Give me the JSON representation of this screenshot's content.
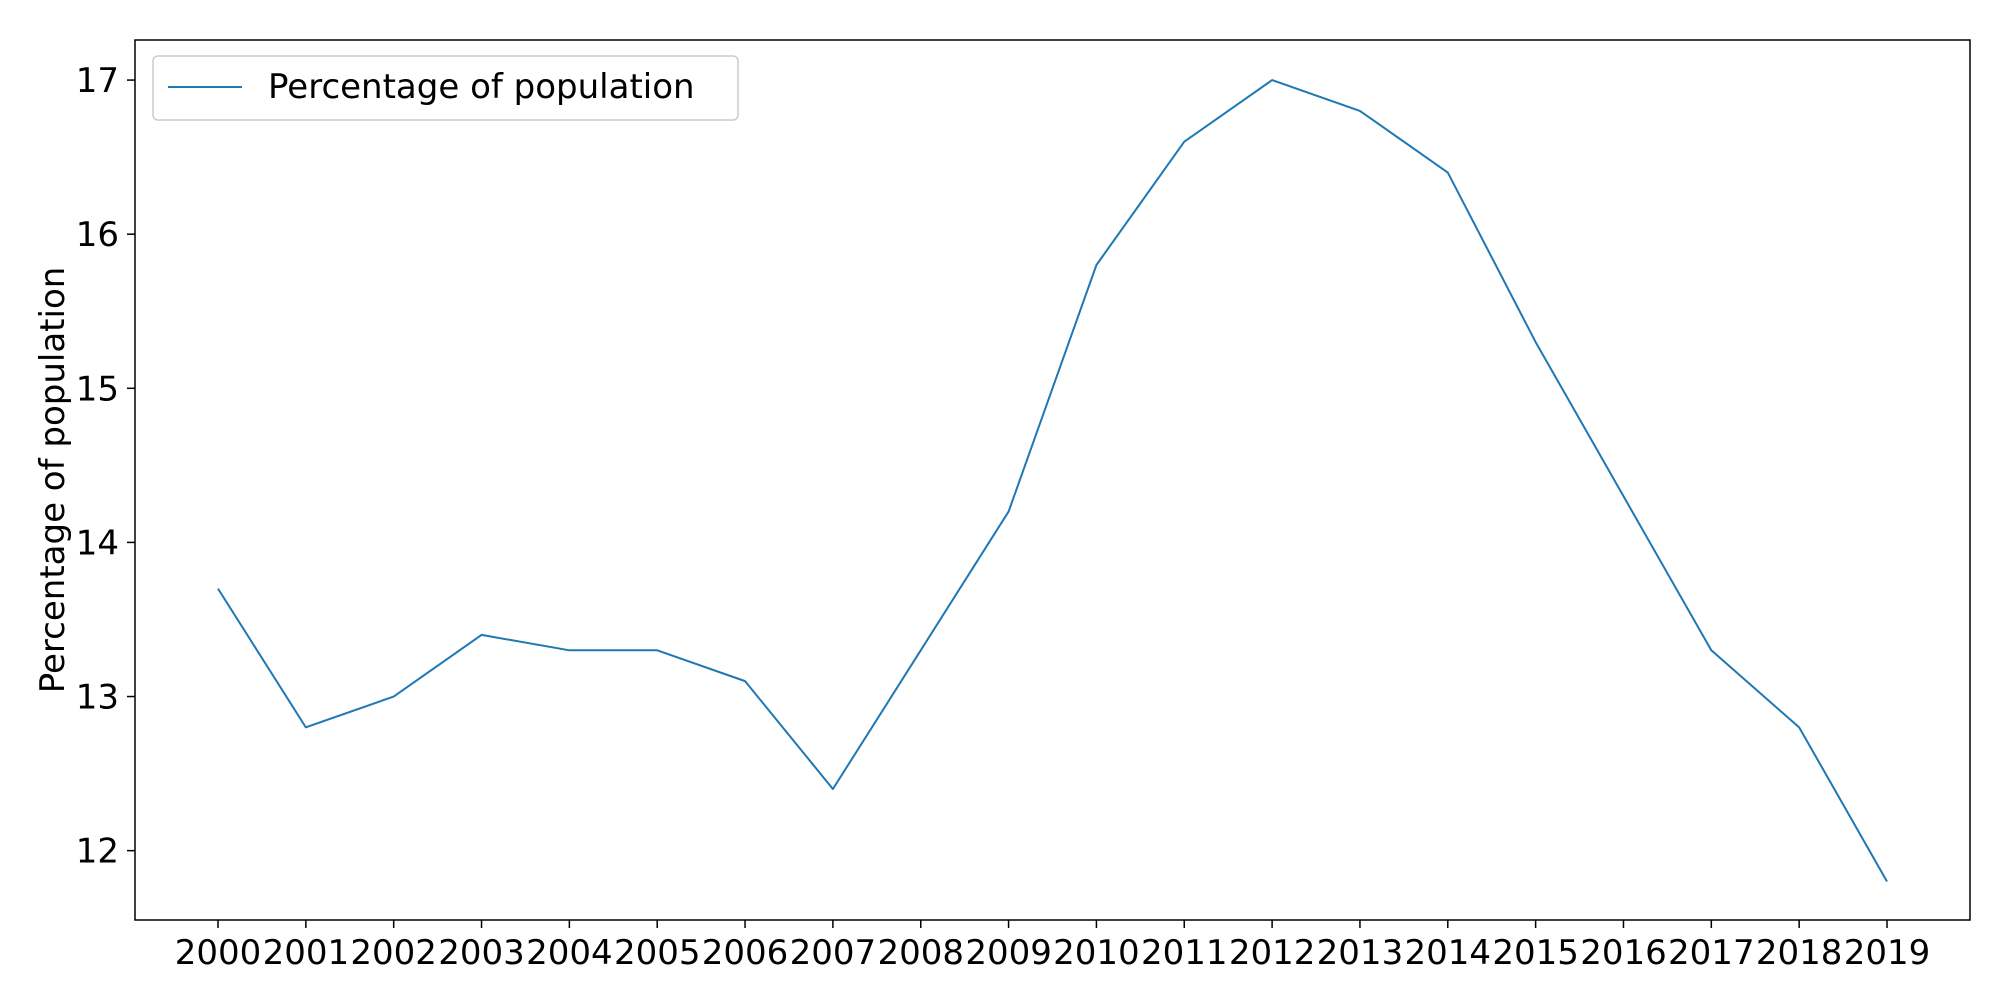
{
  "chart_data": {
    "type": "line",
    "title": "",
    "xlabel": "",
    "ylabel": "Percentage of population",
    "x": [
      "2000",
      "2001",
      "2002",
      "2003",
      "2004",
      "2005",
      "2006",
      "2007",
      "2008",
      "2009",
      "2010",
      "2011",
      "2012",
      "2013",
      "2014",
      "2015",
      "2016",
      "2017",
      "2018",
      "2019"
    ],
    "series": [
      {
        "name": "Percentage of population",
        "color": "#1f77b4",
        "values": [
          13.7,
          12.8,
          13.0,
          13.4,
          13.3,
          13.3,
          13.1,
          12.4,
          13.3,
          14.2,
          15.8,
          16.6,
          17.0,
          16.8,
          16.4,
          15.3,
          14.3,
          13.3,
          12.8,
          11.8
        ]
      }
    ],
    "ylim": [
      11.55,
      17.26
    ],
    "yticks": [
      12,
      13,
      14,
      15,
      16,
      17
    ],
    "ytick_labels": [
      "12",
      "13",
      "14",
      "15",
      "16",
      "17"
    ],
    "grid": false,
    "legend": {
      "position": "top-left",
      "entries": [
        "Percentage of population"
      ]
    }
  }
}
